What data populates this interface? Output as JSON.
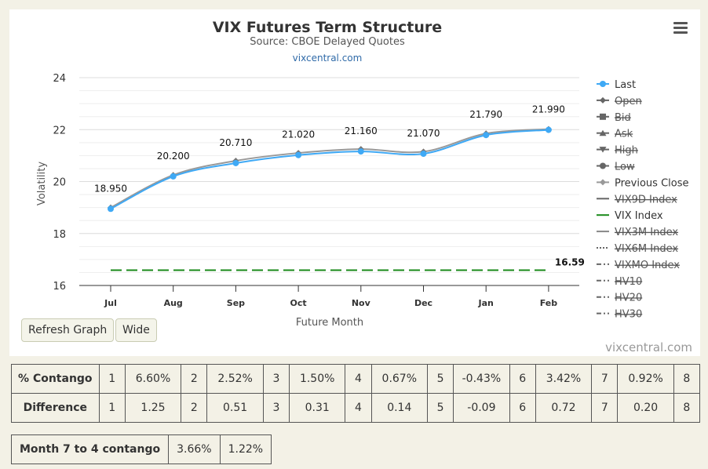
{
  "chart_data": {
    "type": "line",
    "title": "VIX Futures Term Structure",
    "subtitle": "Source: CBOE Delayed Quotes",
    "link": "vixcentral.com",
    "credits": "vixcentral.com",
    "xlabel": "Future Month",
    "ylabel": "Volatility",
    "ylim": [
      16,
      24
    ],
    "yticks": [
      "16",
      "18",
      "20",
      "22",
      "24"
    ],
    "categories": [
      "Jul",
      "Aug",
      "Sep",
      "Oct",
      "Nov",
      "Dec",
      "Jan",
      "Feb"
    ],
    "grid": true,
    "legend_placement": "right",
    "series": [
      {
        "name": "Last",
        "values": [
          18.95,
          20.2,
          20.71,
          21.02,
          21.16,
          21.07,
          21.79,
          21.99
        ],
        "labels": [
          "18.950",
          "20.200",
          "20.710",
          "21.020",
          "21.160",
          "21.070",
          "21.790",
          "21.990"
        ],
        "color": "#3fa9f5"
      },
      {
        "name": "Previous Close",
        "values": [
          19.0,
          20.25,
          20.8,
          21.1,
          21.25,
          21.15,
          21.85,
          22.02
        ],
        "color": "#999999"
      },
      {
        "name": "VIX Index",
        "values": [
          16.59,
          16.59,
          16.59,
          16.59,
          16.59,
          16.59,
          16.59,
          16.59
        ],
        "label": "16.59",
        "color": "#1a8a1a"
      }
    ],
    "legend": [
      {
        "name": "Last",
        "marker": "circle",
        "enabled": true,
        "color": "#3fa9f5"
      },
      {
        "name": "Open",
        "marker": "diamond",
        "enabled": false,
        "color": "#666666"
      },
      {
        "name": "Bid",
        "marker": "square",
        "enabled": false,
        "color": "#666666"
      },
      {
        "name": "Ask",
        "marker": "triangle",
        "enabled": false,
        "color": "#666666"
      },
      {
        "name": "High",
        "marker": "triangle-down",
        "enabled": false,
        "color": "#666666"
      },
      {
        "name": "Low",
        "marker": "circle",
        "enabled": false,
        "color": "#666666"
      },
      {
        "name": "Previous Close",
        "marker": "diamond",
        "enabled": true,
        "color": "#999999"
      },
      {
        "name": "VIX9D Index",
        "marker": "solid-line",
        "enabled": false,
        "color": "#666666"
      },
      {
        "name": "VIX Index",
        "marker": "solid-line",
        "enabled": true,
        "color": "#1a8a1a"
      },
      {
        "name": "VIX3M Index",
        "marker": "solid-line",
        "enabled": false,
        "color": "#888888"
      },
      {
        "name": "VIX6M Index",
        "marker": "dotted-line",
        "enabled": false,
        "color": "#666666"
      },
      {
        "name": "VIXMO Index",
        "marker": "dashdot-line",
        "enabled": false,
        "color": "#666666"
      },
      {
        "name": "HV10",
        "marker": "dashdot-line",
        "enabled": false,
        "color": "#666666"
      },
      {
        "name": "HV20",
        "marker": "dashdot-line",
        "enabled": false,
        "color": "#666666"
      },
      {
        "name": "HV30",
        "marker": "dashdot-line",
        "enabled": false,
        "color": "#666666"
      }
    ]
  },
  "menu_icon": "hamburger-menu-icon",
  "buttons": {
    "refresh": "Refresh Graph",
    "wide": "Wide"
  },
  "contango_table": {
    "rows": [
      {
        "label": "% Contango",
        "cells": [
          "1",
          "6.60%",
          "2",
          "2.52%",
          "3",
          "1.50%",
          "4",
          "0.67%",
          "5",
          "-0.43%",
          "6",
          "3.42%",
          "7",
          "0.92%",
          "8"
        ]
      },
      {
        "label": "Difference",
        "cells": [
          "1",
          "1.25",
          "2",
          "0.51",
          "3",
          "0.31",
          "4",
          "0.14",
          "5",
          "-0.09",
          "6",
          "0.72",
          "7",
          "0.20",
          "8"
        ]
      }
    ]
  },
  "month_table": {
    "label": "Month 7 to 4 contango",
    "values": [
      "3.66%",
      "1.22%"
    ]
  }
}
